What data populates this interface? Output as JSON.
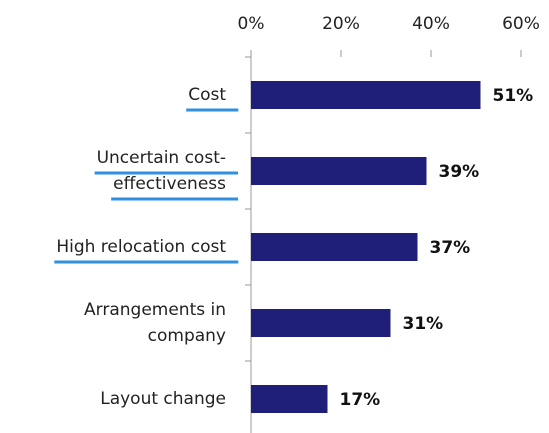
{
  "chart_data": {
    "type": "bar",
    "orientation": "horizontal",
    "categories": [
      [
        "Cost"
      ],
      [
        "Uncertain cost-",
        "effectiveness"
      ],
      [
        "High relocation cost"
      ],
      [
        "Arrangements in",
        "company"
      ],
      [
        "Layout change"
      ]
    ],
    "values": [
      51,
      39,
      37,
      31,
      17
    ],
    "value_labels": [
      "51%",
      "39%",
      "37%",
      "31%",
      "17%"
    ],
    "color": "#1f1f7a",
    "xlim": [
      0,
      60
    ],
    "xticks": [
      {
        "value": 0,
        "label": "0%"
      },
      {
        "value": 20,
        "label": "20%"
      },
      {
        "value": 40,
        "label": "40%"
      },
      {
        "value": 60,
        "label": "60%"
      }
    ],
    "underlined_categories": [
      0,
      1,
      2
    ],
    "underline_color": "#2f8fe0"
  }
}
